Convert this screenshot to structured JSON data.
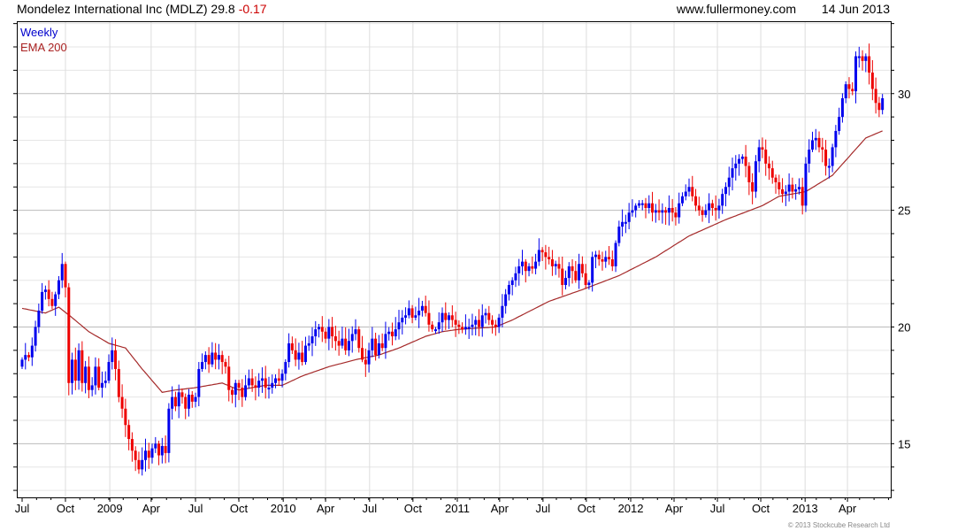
{
  "header": {
    "title": "Mondelez International Inc (MDLZ) 29.8",
    "change": "-0.17",
    "site": "www.fullermoney.com",
    "date": "14 Jun 2013"
  },
  "legend": {
    "series1": "Weekly",
    "series2": "EMA 200"
  },
  "copyright": "© 2013 Stockcube Research Ltd",
  "colors": {
    "up": "#0000ee",
    "down": "#ee0000",
    "ema": "#a52a2a",
    "change": "#cc0000",
    "legend1": "#0000cc",
    "legend2": "#aa2222"
  },
  "chart_data": {
    "type": "candlestick",
    "title": "Mondelez International Inc (MDLZ)",
    "frequency": "weekly",
    "ylim": [
      12.7,
      33.1
    ],
    "yticks": [
      15,
      20,
      25,
      30
    ],
    "xticks": [
      {
        "week": 0,
        "label": "Jul"
      },
      {
        "week": 13,
        "label": "Oct"
      },
      {
        "week": 26.3,
        "label": "2009"
      },
      {
        "week": 38.7,
        "label": "Apr"
      },
      {
        "week": 52,
        "label": "Jul"
      },
      {
        "week": 65,
        "label": "Oct"
      },
      {
        "week": 78.3,
        "label": "2010"
      },
      {
        "week": 91,
        "label": "Apr"
      },
      {
        "week": 104.2,
        "label": "Jul"
      },
      {
        "week": 117.2,
        "label": "Oct"
      },
      {
        "week": 130.5,
        "label": "2011"
      },
      {
        "week": 143.2,
        "label": "Apr"
      },
      {
        "week": 156.2,
        "label": "Jul"
      },
      {
        "week": 169.2,
        "label": "Oct"
      },
      {
        "week": 182.5,
        "label": "2012"
      },
      {
        "week": 195.5,
        "label": "Apr"
      },
      {
        "week": 208.5,
        "label": "Jul"
      },
      {
        "week": 221.5,
        "label": "Oct"
      },
      {
        "week": 234.8,
        "label": "2013"
      },
      {
        "week": 247.5,
        "label": "Apr"
      }
    ],
    "weekly_close": [
      18.6,
      18.8,
      18.7,
      19.2,
      20.0,
      20.7,
      21.5,
      21.6,
      21.2,
      20.9,
      21.4,
      22.0,
      22.7,
      21.7,
      17.6,
      18.6,
      17.7,
      19.0,
      17.6,
      18.3,
      17.3,
      17.5,
      18.3,
      17.4,
      17.6,
      17.7,
      18.5,
      19.0,
      18.2,
      17.0,
      16.5,
      15.8,
      15.2,
      14.7,
      14.3,
      13.9,
      14.3,
      14.7,
      14.4,
      14.8,
      15.0,
      14.5,
      14.9,
      14.6,
      16.5,
      17.0,
      16.6,
      17.2,
      17.0,
      16.5,
      17.1,
      16.8,
      17.0,
      18.2,
      18.5,
      18.8,
      18.4,
      18.9,
      18.6,
      18.8,
      18.5,
      18.3,
      17.3,
      17.1,
      17.6,
      17.4,
      17.0,
      17.5,
      17.8,
      17.5,
      17.4,
      17.7,
      17.8,
      17.4,
      17.4,
      17.6,
      17.8,
      17.7,
      18.0,
      18.5,
      19.3,
      19.0,
      18.6,
      18.9,
      18.5,
      19.2,
      19.3,
      19.6,
      19.9,
      20.0,
      19.8,
      19.5,
      20.0,
      19.6,
      19.4,
      19.2,
      19.5,
      19.0,
      19.4,
      19.7,
      19.9,
      19.1,
      18.6,
      18.4,
      19.0,
      19.5,
      18.8,
      19.3,
      19.1,
      19.7,
      19.8,
      19.6,
      19.9,
      20.2,
      20.4,
      20.5,
      20.8,
      20.4,
      20.5,
      20.7,
      20.9,
      20.6,
      20.1,
      19.9,
      19.9,
      20.2,
      20.6,
      20.3,
      20.5,
      20.3,
      20.1,
      20.0,
      19.9,
      20.0,
      20.0,
      20.1,
      20.3,
      20.0,
      20.5,
      20.6,
      20.3,
      20.1,
      20.0,
      20.4,
      20.9,
      21.4,
      21.8,
      22.0,
      22.3,
      22.6,
      22.8,
      22.4,
      22.6,
      22.5,
      22.8,
      23.3,
      23.2,
      23.0,
      22.9,
      22.6,
      22.7,
      22.5,
      21.8,
      22.1,
      22.6,
      22.4,
      22.0,
      22.7,
      22.3,
      21.8,
      21.9,
      23.0,
      23.1,
      22.9,
      22.8,
      23.0,
      22.9,
      22.6,
      23.6,
      24.3,
      24.5,
      24.5,
      24.9,
      25.0,
      25.2,
      25.3,
      25.3,
      25.1,
      25.3,
      24.9,
      25.0,
      24.9,
      25.0,
      24.9,
      25.1,
      24.9,
      24.7,
      25.3,
      25.6,
      25.8,
      26.0,
      25.6,
      25.2,
      25.0,
      24.8,
      25.0,
      25.3,
      25.1,
      25.0,
      25.2,
      25.7,
      26.0,
      26.4,
      26.8,
      27.0,
      27.2,
      27.3,
      26.9,
      26.2,
      25.8,
      27.1,
      27.7,
      27.6,
      27.0,
      26.8,
      26.4,
      26.2,
      25.9,
      25.7,
      25.8,
      26.1,
      25.8,
      25.9,
      26.0,
      25.2,
      27.0,
      27.6,
      28.0,
      28.1,
      27.7,
      27.6,
      26.9,
      26.9,
      27.7,
      28.4,
      29.0,
      29.8,
      30.4,
      30.2,
      30.1,
      31.6,
      31.6,
      31.4,
      31.6,
      30.9,
      30.2,
      29.6,
      29.3,
      29.8
    ],
    "first_open": 18.3,
    "ema200": [
      [
        0,
        20.8
      ],
      [
        7,
        20.6
      ],
      [
        11,
        20.85
      ],
      [
        15,
        20.4
      ],
      [
        20,
        19.8
      ],
      [
        26,
        19.3
      ],
      [
        31,
        19.1
      ],
      [
        36,
        18.2
      ],
      [
        42,
        17.2
      ],
      [
        46,
        17.3
      ],
      [
        52,
        17.4
      ],
      [
        60,
        17.6
      ],
      [
        65,
        17.3
      ],
      [
        73,
        17.5
      ],
      [
        78,
        17.5
      ],
      [
        84,
        17.9
      ],
      [
        92,
        18.3
      ],
      [
        100,
        18.6
      ],
      [
        107,
        18.8
      ],
      [
        113,
        19.1
      ],
      [
        121,
        19.6
      ],
      [
        126,
        19.8
      ],
      [
        131,
        19.9
      ],
      [
        142,
        20.0
      ],
      [
        147,
        20.3
      ],
      [
        158,
        21.1
      ],
      [
        168,
        21.6
      ],
      [
        179,
        22.2
      ],
      [
        190,
        23.0
      ],
      [
        200,
        23.9
      ],
      [
        211,
        24.6
      ],
      [
        222,
        25.2
      ],
      [
        227,
        25.6
      ],
      [
        235,
        25.8
      ],
      [
        243,
        26.5
      ],
      [
        248,
        27.3
      ],
      [
        253,
        28.1
      ],
      [
        258,
        28.4
      ]
    ]
  }
}
